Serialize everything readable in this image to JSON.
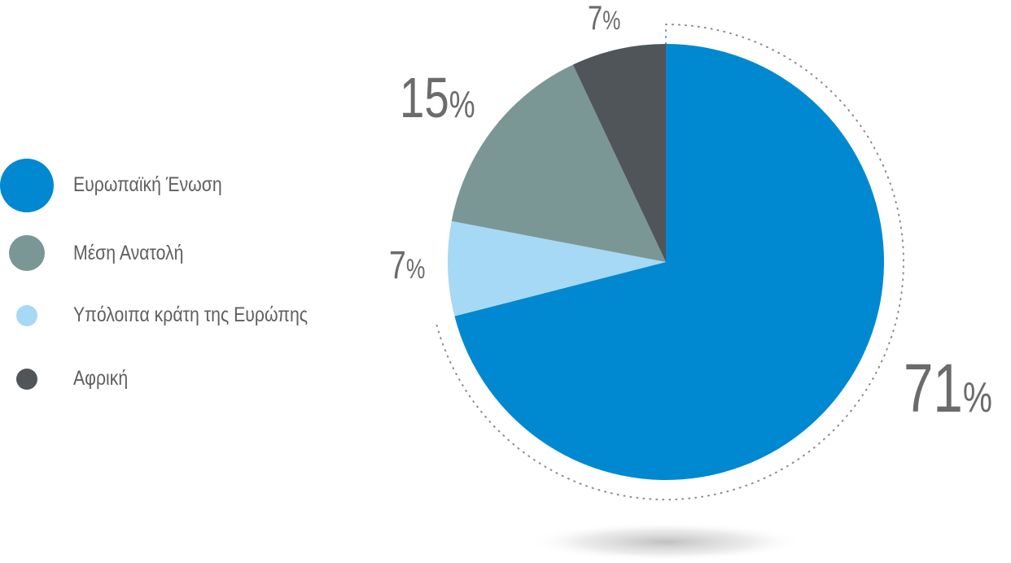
{
  "chart_data": {
    "type": "pie",
    "categories": [
      "Ευρωπαϊκή Ένωση",
      "Μέση Ανατολή",
      "Υπόλοιπα κράτη της Ευρώπης",
      "Αφρική"
    ],
    "values": [
      71,
      15,
      7,
      7
    ],
    "value_labels": [
      "71%",
      "15%",
      "7%",
      "7%"
    ],
    "colors": [
      "#0088d1",
      "#7a9795",
      "#a6d9f5",
      "#4f5559"
    ],
    "legend_position": "left",
    "slice_order": "clockwise from top: Ευρωπαϊκή Ένωση, Υπόλοιπα κράτη της Ευρώπης, Μέση Ανατολή, Αφρική"
  },
  "legend": {
    "items": [
      {
        "label": "Ευρωπαϊκή Ένωση",
        "color": "#0088d1"
      },
      {
        "label": "Μέση Ανατολή",
        "color": "#7a9795"
      },
      {
        "label": "Υπόλοιπα κράτη της Ευρώπης",
        "color": "#a6d9f5"
      },
      {
        "label": "Αφρική",
        "color": "#4f5559"
      }
    ]
  }
}
